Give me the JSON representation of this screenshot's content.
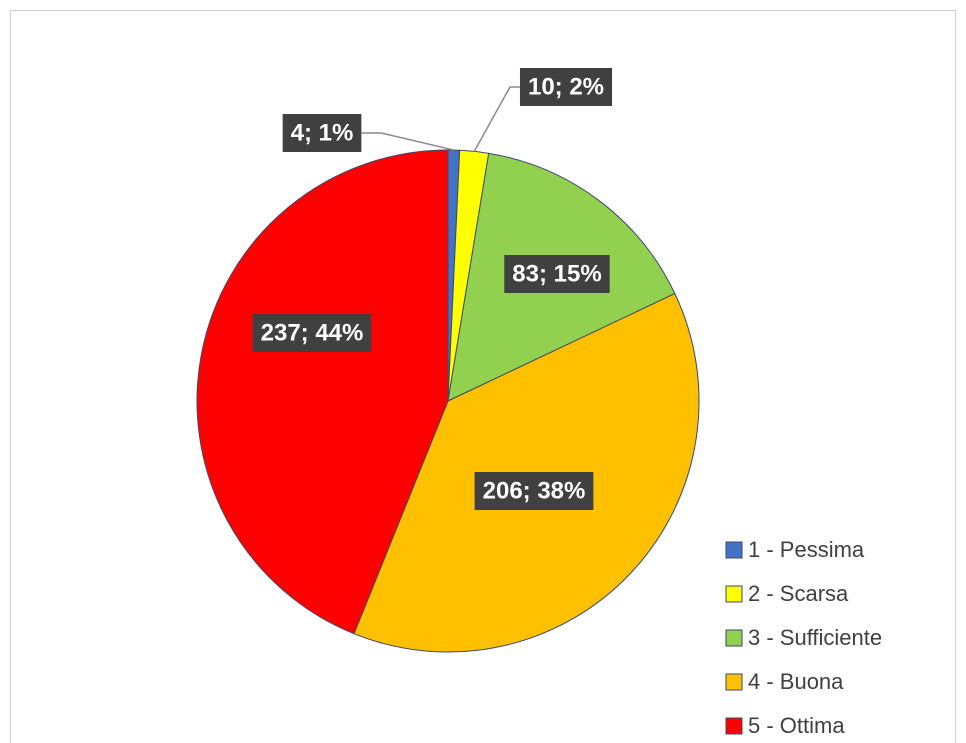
{
  "chart_data": {
    "type": "pie",
    "categories": [
      "1 - Pessima",
      "2 - Scarsa",
      "3 - Sufficiente",
      "4 - Buona",
      "5 - Ottima"
    ],
    "values": [
      4,
      10,
      83,
      206,
      237
    ],
    "value_labels": [
      "4; 1%",
      "10; 2%",
      "83; 15%",
      "206; 38%",
      "237; 44%"
    ],
    "colors": [
      "#4472c4",
      "#ffff00",
      "#92d050",
      "#ffc000",
      "#ff0000"
    ],
    "legend": "right"
  }
}
